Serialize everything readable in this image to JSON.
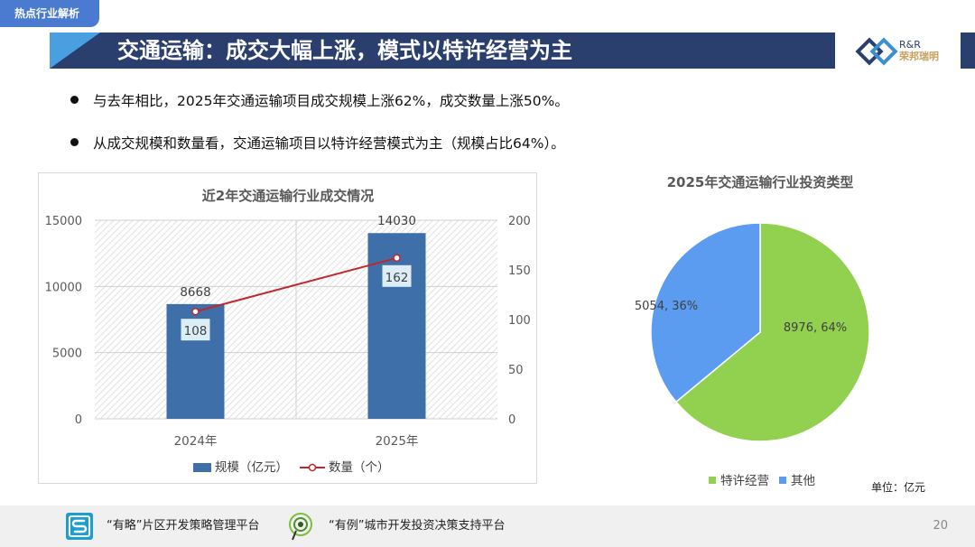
{
  "header": {
    "section_tag": "热点行业解析",
    "title": "交通运输：成交大幅上涨，模式以特许经营为主",
    "logo": {
      "line1": "R&R",
      "line2": "荣邦瑞明"
    }
  },
  "bullets": [
    "与去年相比，2025年交通运输项目成交规模上涨62%，成交数量上涨50%。",
    "从成交规模和数量看，交通运输项目以特许经营模式为主（规模占比64%）。"
  ],
  "chart_data": [
    {
      "type": "bar",
      "title": "近2年交通运输行业成交情况",
      "categories": [
        "2024年",
        "2025年"
      ],
      "series": [
        {
          "name": "规模（亿元）",
          "kind": "bar",
          "axis": "left",
          "values": [
            8668,
            14030
          ],
          "color": "#3f6fa8"
        },
        {
          "name": "数量（个）",
          "kind": "line",
          "axis": "right",
          "values": [
            108,
            162
          ],
          "color": "#c0272d"
        }
      ],
      "y_left": {
        "range": [
          0,
          15000
        ],
        "ticks": [
          0,
          5000,
          10000,
          15000
        ]
      },
      "y_right": {
        "range": [
          0,
          200
        ],
        "ticks": [
          0,
          50,
          100,
          150,
          200
        ]
      },
      "legend": "bottom"
    },
    {
      "type": "pie",
      "title": "2025年交通运输行业投资类型",
      "slices": [
        {
          "name": "特许经营",
          "value": 8976,
          "percent": "64%",
          "color": "#92d050"
        },
        {
          "name": "其他",
          "value": 5054,
          "percent": "36%",
          "color": "#5b9bf0"
        }
      ],
      "slice_labels": [
        "8976, 64%",
        "5054, 36%"
      ],
      "legend": "bottom",
      "unit_note": "单位：亿元"
    }
  ],
  "footer": {
    "item1": "“有略”片区开发策略管理平台",
    "item2": "“有例”城市开发投资决策支持平台",
    "page": "20"
  }
}
